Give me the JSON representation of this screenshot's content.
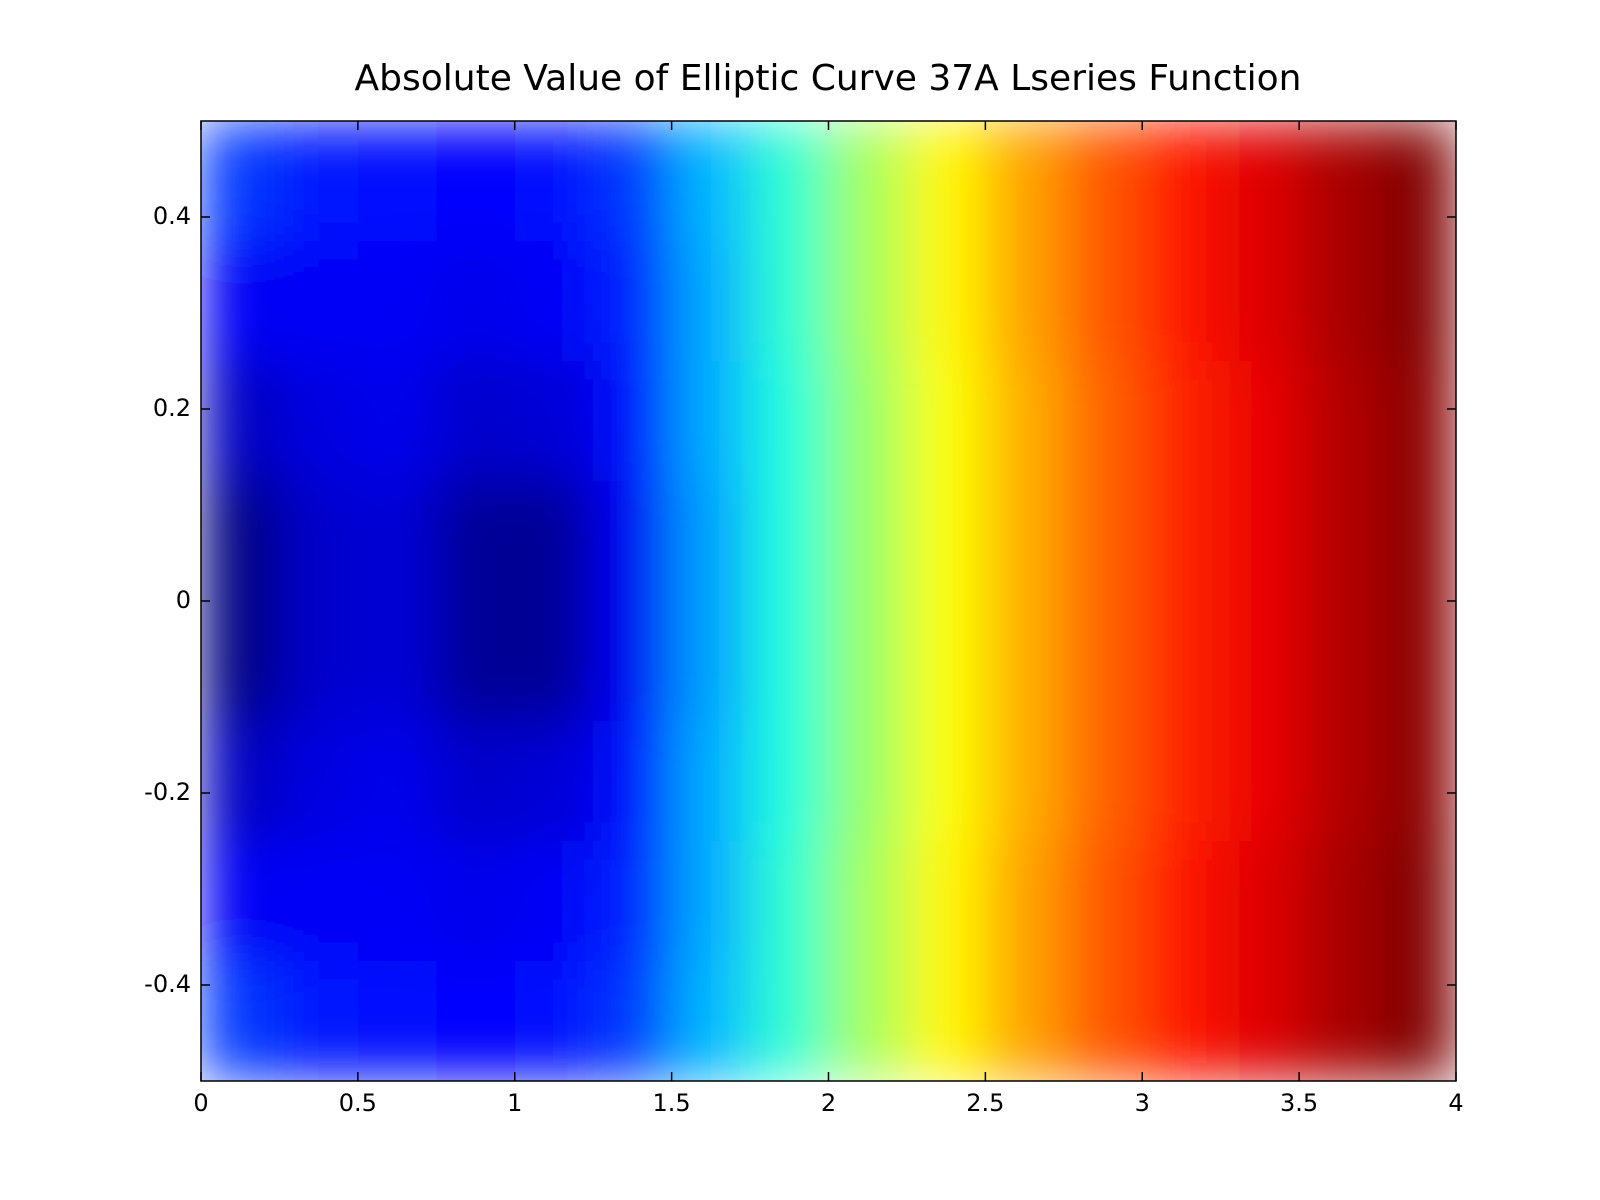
{
  "chart_data": {
    "type": "heatmap",
    "title": "Absolute Value of Elliptic Curve 37A Lseries Function",
    "colormap": "jet",
    "x": [
      0.125,
      0.375,
      0.625,
      0.875,
      1.125,
      1.375,
      1.625,
      1.875,
      2.125,
      2.375,
      2.625,
      2.875,
      3.125,
      3.375,
      3.625,
      3.875
    ],
    "y": [
      0.4375,
      0.3125,
      0.1875,
      0.0625,
      -0.0625,
      -0.1875,
      -0.3125,
      -0.4375
    ],
    "z": [
      [
        0.22,
        0.19,
        0.18,
        0.17,
        0.18,
        0.22,
        0.34,
        0.45,
        0.56,
        0.65,
        0.73,
        0.8,
        0.86,
        0.91,
        0.96,
        1.0
      ],
      [
        0.16,
        0.16,
        0.16,
        0.15,
        0.16,
        0.2,
        0.33,
        0.45,
        0.56,
        0.65,
        0.73,
        0.8,
        0.86,
        0.91,
        0.96,
        1.0
      ],
      [
        0.11,
        0.14,
        0.15,
        0.12,
        0.13,
        0.18,
        0.33,
        0.44,
        0.55,
        0.64,
        0.72,
        0.79,
        0.85,
        0.9,
        0.95,
        0.99
      ],
      [
        0.05,
        0.12,
        0.13,
        0.07,
        0.07,
        0.16,
        0.32,
        0.44,
        0.55,
        0.64,
        0.72,
        0.79,
        0.85,
        0.9,
        0.95,
        0.99
      ],
      [
        0.05,
        0.12,
        0.13,
        0.07,
        0.07,
        0.16,
        0.32,
        0.44,
        0.55,
        0.64,
        0.72,
        0.79,
        0.85,
        0.9,
        0.95,
        0.99
      ],
      [
        0.11,
        0.14,
        0.15,
        0.12,
        0.13,
        0.18,
        0.33,
        0.44,
        0.55,
        0.64,
        0.72,
        0.79,
        0.85,
        0.9,
        0.95,
        0.99
      ],
      [
        0.16,
        0.16,
        0.16,
        0.15,
        0.16,
        0.2,
        0.33,
        0.45,
        0.56,
        0.65,
        0.73,
        0.8,
        0.86,
        0.91,
        0.96,
        1.0
      ],
      [
        0.22,
        0.19,
        0.18,
        0.17,
        0.18,
        0.22,
        0.34,
        0.45,
        0.56,
        0.65,
        0.73,
        0.8,
        0.86,
        0.91,
        0.96,
        1.0
      ]
    ],
    "xlim": [
      0,
      4
    ],
    "ylim": [
      -0.5,
      0.5
    ],
    "xticks": [
      0,
      0.5,
      1,
      1.5,
      2,
      2.5,
      3,
      3.5,
      4
    ],
    "yticks": [
      -0.4,
      -0.2,
      0,
      0.2,
      0.4
    ]
  }
}
